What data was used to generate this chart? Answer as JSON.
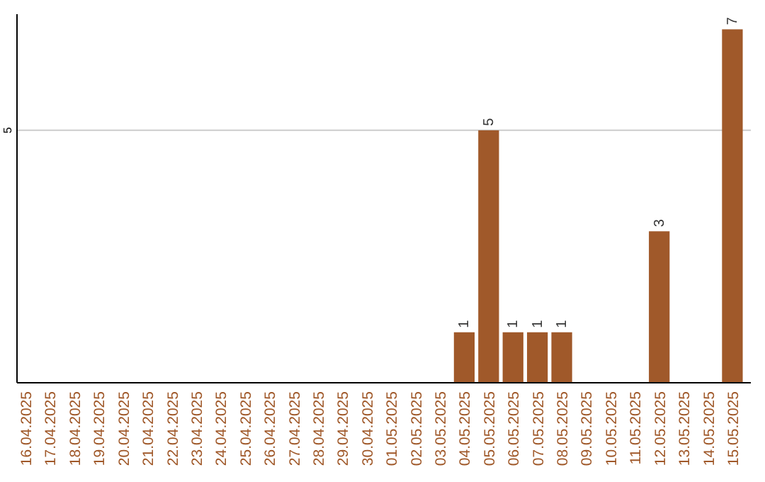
{
  "chart_data": {
    "type": "bar",
    "categories": [
      "16.04.2025",
      "17.04.2025",
      "18.04.2025",
      "19.04.2025",
      "20.04.2025",
      "21.04.2025",
      "22.04.2025",
      "23.04.2025",
      "24.04.2025",
      "25.04.2025",
      "26.04.2025",
      "27.04.2025",
      "28.04.2025",
      "29.04.2025",
      "30.04.2025",
      "01.05.2025",
      "02.05.2025",
      "03.05.2025",
      "04.05.2025",
      "05.05.2025",
      "06.05.2025",
      "07.05.2025",
      "08.05.2025",
      "09.05.2025",
      "10.05.2025",
      "11.05.2025",
      "12.05.2025",
      "13.05.2025",
      "14.05.2025",
      "15.05.2025"
    ],
    "values": [
      null,
      null,
      null,
      null,
      null,
      null,
      null,
      null,
      null,
      null,
      null,
      null,
      null,
      null,
      null,
      null,
      null,
      null,
      1,
      5,
      1,
      1,
      1,
      null,
      null,
      null,
      3,
      null,
      null,
      7
    ],
    "color": "#a0592a",
    "ylim": [
      0,
      7.3
    ],
    "yticks": [
      5
    ],
    "grid": "y",
    "data_labels": true
  }
}
